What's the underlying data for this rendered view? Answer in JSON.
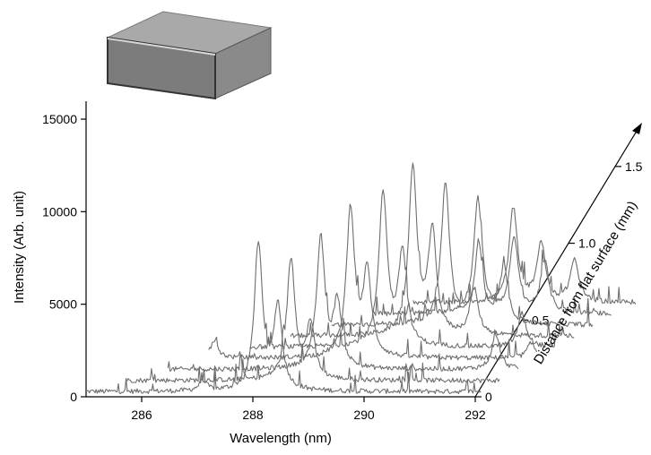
{
  "chart_data": {
    "type": "line",
    "subtype": "3d-waterfall",
    "title": "",
    "xlabel": "Wavelength (nm)",
    "ylabel": "Intensity (Arb. unit)",
    "zlabel": "Distance from flat surface (mm)",
    "xlim": [
      285,
      292
    ],
    "ylim": [
      0,
      15000
    ],
    "zlim": [
      0,
      1.75
    ],
    "x_ticks": [
      "286",
      "288",
      "290",
      "292"
    ],
    "y_ticks": [
      "0",
      "5000",
      "10000",
      "15000"
    ],
    "z_ticks": [
      "0",
      "0.5",
      "1.0",
      "1.5"
    ],
    "grid": false,
    "inset": "gray-block-illustration",
    "series_color": "#6e6e6e",
    "series": [
      {
        "distance": 0.0,
        "x_start": 285.0,
        "baseline": 0,
        "peaks": [
          [
            288.1,
            7800
          ],
          [
            288.45,
            4500
          ],
          [
            287.1,
            500
          ]
        ]
      },
      {
        "distance": 0.2,
        "x_start": 285.4,
        "baseline": 600,
        "peaks": [
          [
            288.35,
            6500
          ],
          [
            288.7,
            3000
          ]
        ]
      },
      {
        "distance": 0.4,
        "x_start": 285.8,
        "baseline": 1200,
        "peaks": [
          [
            288.55,
            7000
          ],
          [
            288.85,
            3500
          ],
          [
            291.7,
            1800
          ]
        ]
      },
      {
        "distance": 0.6,
        "x_start": 286.2,
        "baseline": 1800,
        "peaks": [
          [
            288.75,
            8000
          ],
          [
            289.05,
            4500
          ],
          [
            286.3,
            900
          ],
          [
            292.0,
            800
          ]
        ]
      },
      {
        "distance": 0.8,
        "x_start": 286.6,
        "baseline": 2400,
        "peaks": [
          [
            289.0,
            8300
          ],
          [
            289.35,
            5000
          ],
          [
            291.5,
            1800
          ]
        ]
      },
      {
        "distance": 1.0,
        "x_start": 287.0,
        "baseline": 3000,
        "peaks": [
          [
            289.2,
            8900
          ],
          [
            289.55,
            5500
          ],
          [
            290.3,
            2500
          ]
        ]
      },
      {
        "distance": 1.2,
        "x_start": 287.4,
        "baseline": 3600,
        "peaks": [
          [
            289.45,
            7600
          ],
          [
            290.05,
            4300
          ],
          [
            290.5,
            3000
          ]
        ]
      },
      {
        "distance": 1.4,
        "x_start": 287.8,
        "baseline": 4200,
        "peaks": [
          [
            289.7,
            6200
          ],
          [
            290.35,
            4000
          ],
          [
            290.9,
            2800
          ]
        ]
      },
      {
        "distance": 1.6,
        "x_start": 288.2,
        "baseline": 4800,
        "peaks": [
          [
            290.0,
            5100
          ],
          [
            290.5,
            3200
          ],
          [
            291.1,
            2300
          ],
          [
            293.3,
            1200
          ]
        ]
      }
    ]
  }
}
